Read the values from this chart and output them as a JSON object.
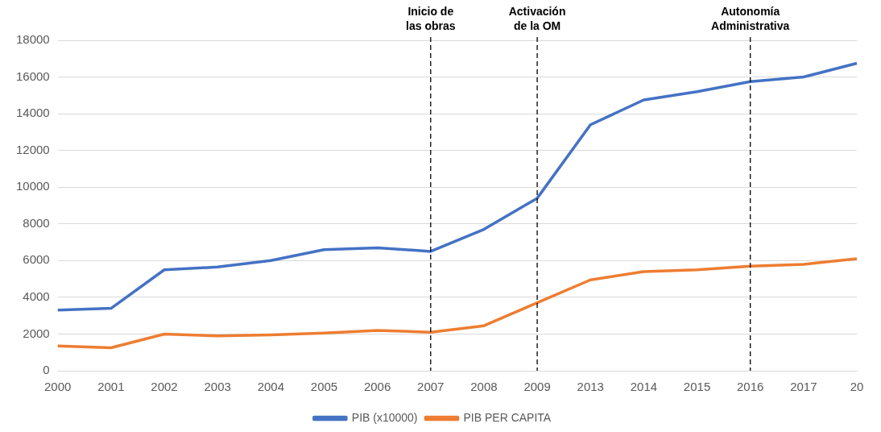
{
  "chart_data": {
    "type": "line",
    "categories": [
      "2000",
      "2001",
      "2002",
      "2003",
      "2004",
      "2005",
      "2006",
      "2007",
      "2008",
      "2009",
      "2013",
      "2014",
      "2015",
      "2016",
      "2017",
      "20"
    ],
    "series": [
      {
        "name": "PIB (x10000)",
        "color": "#4472c4",
        "values": [
          3300,
          3400,
          5500,
          5650,
          6000,
          6600,
          6700,
          6500,
          7700,
          9400,
          13400,
          14750,
          15200,
          15750,
          16000,
          16750
        ]
      },
      {
        "name": "PIB PER CAPITA",
        "color": "#ed7d31",
        "values": [
          1350,
          1250,
          2000,
          1900,
          1950,
          2050,
          2200,
          2100,
          2450,
          3700,
          4950,
          5400,
          5500,
          5700,
          5800,
          6100
        ]
      }
    ],
    "ylim": [
      0,
      18000
    ],
    "yticks": [
      0,
      2000,
      4000,
      6000,
      8000,
      10000,
      12000,
      14000,
      16000,
      18000
    ],
    "ref_lines": [
      {
        "axis": "x",
        "value": "2007",
        "label": "Inicio de\nlas obras",
        "color": "#000000",
        "line_style": "dashed"
      },
      {
        "axis": "x",
        "value": "2009",
        "label": "Activación\nde la OM",
        "color": "#000000",
        "line_style": "dashed"
      },
      {
        "axis": "x",
        "value": "2016",
        "label": "Autonomía\nAdministrativa",
        "color": "#000000",
        "line_style": "dashed"
      }
    ],
    "grid": "y",
    "legend": "bottom",
    "marker": "none",
    "line_style": "solid"
  }
}
